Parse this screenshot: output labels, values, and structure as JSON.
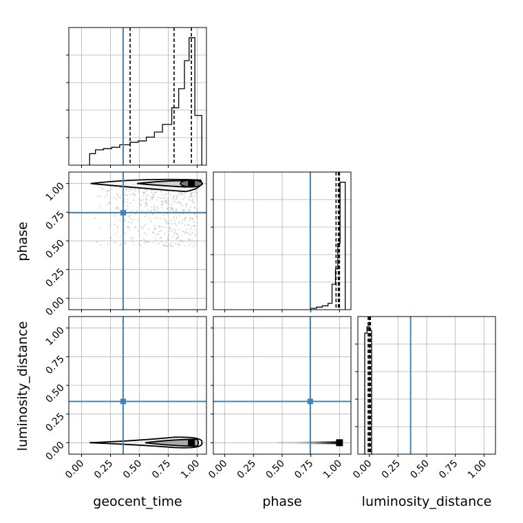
{
  "chart_data": {
    "type": "corner",
    "parameters": [
      "geocent_time",
      "phase",
      "luminosity_distance"
    ],
    "ranges": {
      "geocent_time": [
        -0.11,
        1.08
      ],
      "phase": [
        -0.1,
        1.1
      ],
      "luminosity_distance": [
        -0.1,
        1.1
      ]
    },
    "ticks": [
      0.0,
      0.25,
      0.5,
      0.75,
      1.0
    ],
    "tick_labels": [
      "0.00",
      "0.25",
      "0.50",
      "0.75",
      "1.00"
    ],
    "truths": {
      "geocent_time": 0.36,
      "phase": 0.745,
      "luminosity_distance": 0.36
    },
    "truth_color": "#4682b4",
    "grid": true,
    "histograms": {
      "geocent_time": {
        "edges": [
          0.07,
          0.12,
          0.19,
          0.26,
          0.33,
          0.42,
          0.49,
          0.56,
          0.63,
          0.7,
          0.78,
          0.84,
          0.89,
          0.93,
          0.98,
          1.04
        ],
        "heights": [
          0.09,
          0.12,
          0.13,
          0.14,
          0.16,
          0.18,
          0.19,
          0.22,
          0.26,
          0.32,
          0.45,
          0.6,
          0.82,
          1.0,
          0.39
        ],
        "quantiles": [
          0.42,
          0.8,
          0.95
        ]
      },
      "phase": {
        "edges": [
          0.75,
          0.8,
          0.85,
          0.9,
          0.935,
          0.965,
          0.985,
          1.005,
          1.05
        ],
        "heights": [
          0.01,
          0.02,
          0.03,
          0.05,
          0.2,
          0.32,
          0.52,
          1.0
        ],
        "quantiles": [
          0.97,
          0.99,
          1.0
        ]
      },
      "luminosity_distance": {
        "edges": [
          -0.04,
          -0.02,
          0.0,
          0.02
        ],
        "heights": [
          0.95,
          1.0,
          0.97
        ],
        "quantiles": [
          -0.01,
          0.0,
          0.01
        ]
      }
    },
    "density_peaks": {
      "phase_vs_geocent_time": {
        "x": 0.95,
        "y": 1.0
      },
      "luminosity_distance_vs_geocent_time": {
        "x": 0.95,
        "y": 0.0
      },
      "luminosity_distance_vs_phase": {
        "x": 1.0,
        "y": 0.0
      }
    },
    "xlabels": [
      "geocent_time",
      "phase",
      "luminosity_distance"
    ],
    "ylabels": [
      "",
      "phase",
      "luminosity_distance"
    ]
  }
}
